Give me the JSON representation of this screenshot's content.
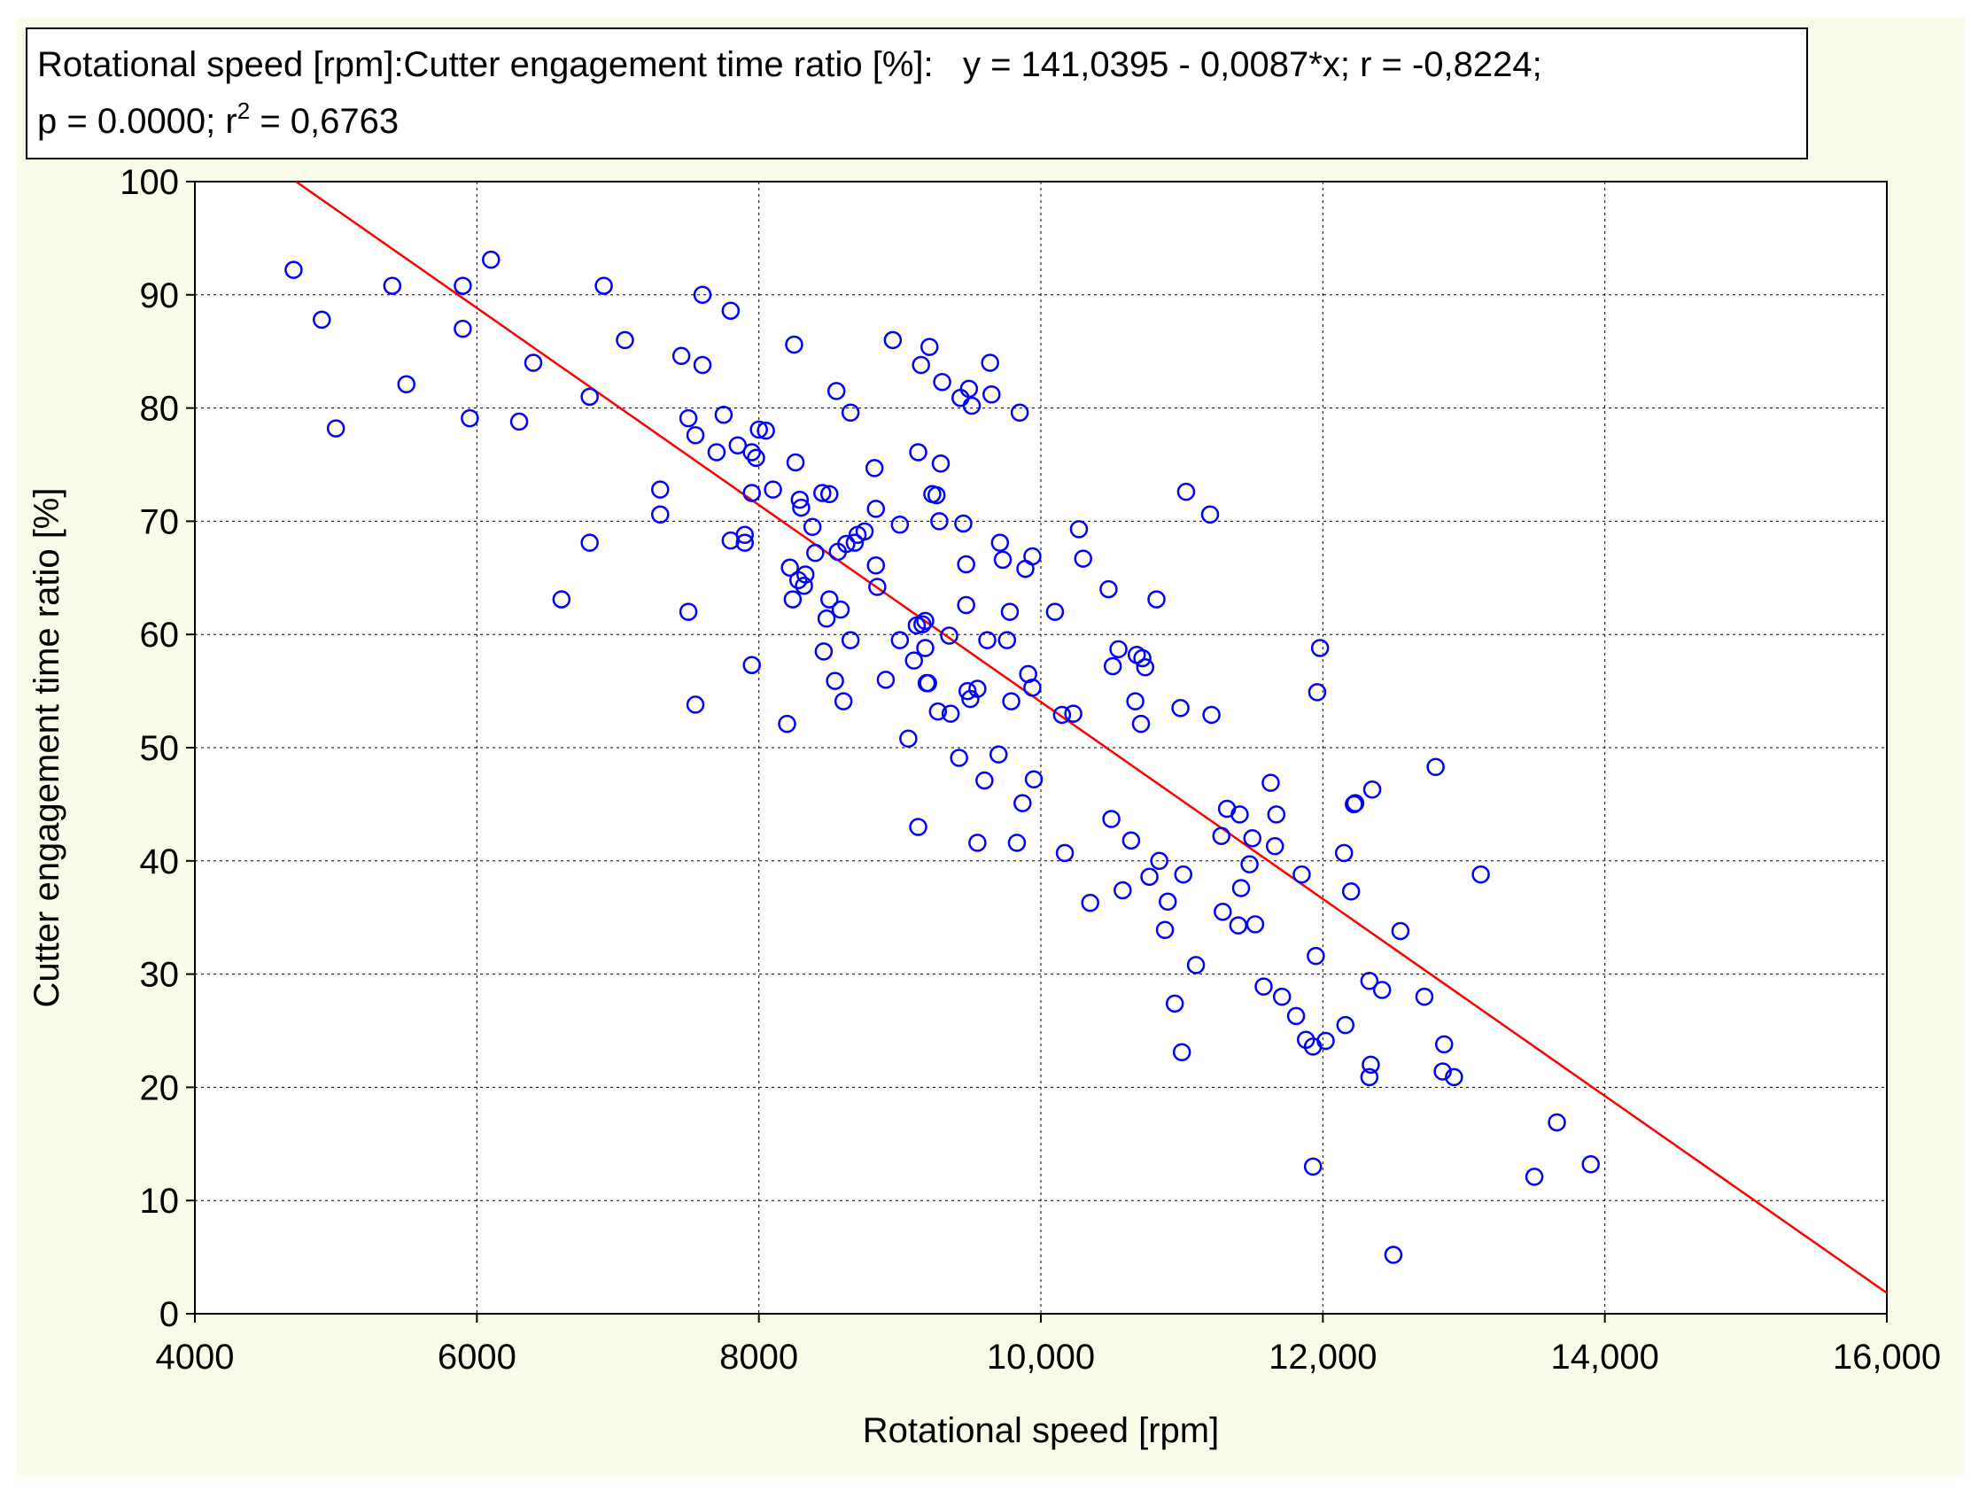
{
  "chart_data": {
    "type": "scatter",
    "title_line1": "Rotational speed [rpm]:Cutter engagement time ratio [%]:   y = 141,0395 - 0,0087*x; r = -0,8224;",
    "title_line2_prefix": "p = 0.0000; r",
    "title_line2_sup": "2",
    "title_line2_suffix": " = 0,6763",
    "xlabel": "Rotational speed [rpm]",
    "ylabel": "Cutter engagement time ratio [%]",
    "xlim": [
      4000,
      16000
    ],
    "ylim": [
      0,
      100
    ],
    "xticks": [
      4000,
      6000,
      8000,
      10000,
      12000,
      14000,
      16000
    ],
    "xtick_labels": [
      "4000",
      "6000",
      "8000",
      "10,000",
      "12,000",
      "14,000",
      "16,000"
    ],
    "yticks": [
      0,
      10,
      20,
      30,
      40,
      50,
      60,
      70,
      80,
      90,
      100
    ],
    "ytick_labels": [
      "0",
      "10",
      "20",
      "30",
      "40",
      "50",
      "60",
      "70",
      "80",
      "90",
      "100"
    ],
    "grid": true,
    "point_color": "#0000ff",
    "line_color": "#ff0000",
    "regression": {
      "intercept": 141.0395,
      "slope": -0.0087
    },
    "points": [
      [
        4700,
        92.2
      ],
      [
        4900,
        87.8
      ],
      [
        5000,
        78.2
      ],
      [
        5400,
        90.8
      ],
      [
        5500,
        82.1
      ],
      [
        5900,
        87.0
      ],
      [
        5900,
        90.8
      ],
      [
        5950,
        79.1
      ],
      [
        6100,
        93.1
      ],
      [
        6300,
        78.8
      ],
      [
        6400,
        84.0
      ],
      [
        6600,
        63.1
      ],
      [
        6800,
        81.0
      ],
      [
        6800,
        68.1
      ],
      [
        6900,
        90.8
      ],
      [
        7050,
        86.0
      ],
      [
        7300,
        72.8
      ],
      [
        7300,
        70.6
      ],
      [
        7450,
        84.6
      ],
      [
        7500,
        79.1
      ],
      [
        7500,
        62.0
      ],
      [
        7550,
        77.6
      ],
      [
        7550,
        53.8
      ],
      [
        7600,
        90.0
      ],
      [
        7600,
        83.8
      ],
      [
        7700,
        76.1
      ],
      [
        7750,
        79.4
      ],
      [
        7800,
        88.6
      ],
      [
        7800,
        68.3
      ],
      [
        7850,
        76.7
      ],
      [
        7900,
        68.1
      ],
      [
        7900,
        68.8
      ],
      [
        7950,
        76.1
      ],
      [
        7950,
        57.3
      ],
      [
        7950,
        72.5
      ],
      [
        7980,
        75.6
      ],
      [
        8000,
        78.1
      ],
      [
        8050,
        78.0
      ],
      [
        8100,
        72.8
      ],
      [
        8200,
        52.1
      ],
      [
        8220,
        65.9
      ],
      [
        8240,
        63.1
      ],
      [
        8250,
        85.6
      ],
      [
        8260,
        75.2
      ],
      [
        8280,
        64.8
      ],
      [
        8290,
        71.9
      ],
      [
        8300,
        71.2
      ],
      [
        8320,
        64.3
      ],
      [
        8330,
        65.3
      ],
      [
        8380,
        69.5
      ],
      [
        8400,
        67.2
      ],
      [
        8450,
        72.5
      ],
      [
        8460,
        58.5
      ],
      [
        8480,
        61.4
      ],
      [
        8500,
        72.4
      ],
      [
        8500,
        63.1
      ],
      [
        8540,
        55.9
      ],
      [
        8550,
        81.5
      ],
      [
        8560,
        67.3
      ],
      [
        8580,
        62.2
      ],
      [
        8600,
        54.1
      ],
      [
        8620,
        68.0
      ],
      [
        8650,
        59.5
      ],
      [
        8650,
        79.6
      ],
      [
        8680,
        68.1
      ],
      [
        8700,
        68.8
      ],
      [
        8750,
        69.1
      ],
      [
        8820,
        74.7
      ],
      [
        8830,
        71.1
      ],
      [
        8830,
        66.1
      ],
      [
        8840,
        64.2
      ],
      [
        8900,
        56.0
      ],
      [
        8950,
        86.0
      ],
      [
        9000,
        69.7
      ],
      [
        9000,
        59.5
      ],
      [
        9060,
        50.8
      ],
      [
        9100,
        57.7
      ],
      [
        9120,
        60.8
      ],
      [
        9130,
        43.0
      ],
      [
        9130,
        76.1
      ],
      [
        9150,
        83.8
      ],
      [
        9160,
        60.9
      ],
      [
        9180,
        58.8
      ],
      [
        9180,
        61.2
      ],
      [
        9190,
        55.7
      ],
      [
        9200,
        55.7
      ],
      [
        9210,
        85.4
      ],
      [
        9230,
        72.4
      ],
      [
        9260,
        72.3
      ],
      [
        9270,
        53.2
      ],
      [
        9280,
        70.0
      ],
      [
        9290,
        75.1
      ],
      [
        9300,
        82.3
      ],
      [
        9350,
        59.9
      ],
      [
        9360,
        53.0
      ],
      [
        9420,
        49.1
      ],
      [
        9430,
        80.9
      ],
      [
        9450,
        69.8
      ],
      [
        9470,
        66.2
      ],
      [
        9470,
        62.6
      ],
      [
        9480,
        55.0
      ],
      [
        9490,
        81.7
      ],
      [
        9500,
        54.3
      ],
      [
        9510,
        80.2
      ],
      [
        9550,
        55.2
      ],
      [
        9550,
        41.6
      ],
      [
        9600,
        47.1
      ],
      [
        9620,
        59.5
      ],
      [
        9640,
        84.0
      ],
      [
        9650,
        81.2
      ],
      [
        9700,
        49.4
      ],
      [
        9710,
        68.1
      ],
      [
        9730,
        66.6
      ],
      [
        9760,
        59.5
      ],
      [
        9780,
        62.0
      ],
      [
        9790,
        54.1
      ],
      [
        9830,
        41.6
      ],
      [
        9850,
        79.6
      ],
      [
        9870,
        45.1
      ],
      [
        9890,
        65.8
      ],
      [
        9910,
        56.5
      ],
      [
        9940,
        55.3
      ],
      [
        9940,
        66.9
      ],
      [
        9950,
        47.2
      ],
      [
        10100,
        62.0
      ],
      [
        10150,
        52.9
      ],
      [
        10170,
        40.7
      ],
      [
        10230,
        53.0
      ],
      [
        10270,
        69.3
      ],
      [
        10300,
        66.7
      ],
      [
        10350,
        36.3
      ],
      [
        10480,
        64.0
      ],
      [
        10500,
        43.7
      ],
      [
        10510,
        57.2
      ],
      [
        10550,
        58.7
      ],
      [
        10580,
        37.4
      ],
      [
        10640,
        41.8
      ],
      [
        10670,
        54.1
      ],
      [
        10680,
        58.2
      ],
      [
        10710,
        52.1
      ],
      [
        10720,
        57.9
      ],
      [
        10740,
        57.1
      ],
      [
        10770,
        38.6
      ],
      [
        10820,
        63.1
      ],
      [
        10840,
        40.0
      ],
      [
        10880,
        33.9
      ],
      [
        10900,
        36.4
      ],
      [
        10950,
        27.4
      ],
      [
        10990,
        53.5
      ],
      [
        11000,
        23.1
      ],
      [
        11010,
        38.8
      ],
      [
        11030,
        72.6
      ],
      [
        11100,
        30.8
      ],
      [
        11200,
        70.6
      ],
      [
        11210,
        52.9
      ],
      [
        11280,
        42.2
      ],
      [
        11290,
        35.5
      ],
      [
        11320,
        44.6
      ],
      [
        11400,
        34.3
      ],
      [
        11410,
        44.1
      ],
      [
        11420,
        37.6
      ],
      [
        11480,
        39.7
      ],
      [
        11500,
        42.0
      ],
      [
        11520,
        34.4
      ],
      [
        11580,
        28.9
      ],
      [
        11630,
        46.9
      ],
      [
        11660,
        41.3
      ],
      [
        11670,
        44.1
      ],
      [
        11710,
        28.0
      ],
      [
        11810,
        26.3
      ],
      [
        11850,
        38.8
      ],
      [
        11880,
        24.2
      ],
      [
        11930,
        23.6
      ],
      [
        11930,
        13.0
      ],
      [
        11950,
        31.6
      ],
      [
        11960,
        54.9
      ],
      [
        11980,
        58.8
      ],
      [
        12020,
        24.1
      ],
      [
        12150,
        40.7
      ],
      [
        12160,
        25.5
      ],
      [
        12200,
        37.3
      ],
      [
        12220,
        45.0
      ],
      [
        12230,
        45.1
      ],
      [
        12330,
        29.4
      ],
      [
        12330,
        20.9
      ],
      [
        12340,
        22.0
      ],
      [
        12350,
        46.3
      ],
      [
        12420,
        28.6
      ],
      [
        12500,
        5.2
      ],
      [
        12550,
        33.8
      ],
      [
        12720,
        28.0
      ],
      [
        12800,
        48.3
      ],
      [
        12850,
        21.4
      ],
      [
        12860,
        23.8
      ],
      [
        12930,
        20.9
      ],
      [
        13120,
        38.8
      ],
      [
        13500,
        12.1
      ],
      [
        13660,
        16.9
      ],
      [
        13900,
        13.2
      ]
    ]
  }
}
